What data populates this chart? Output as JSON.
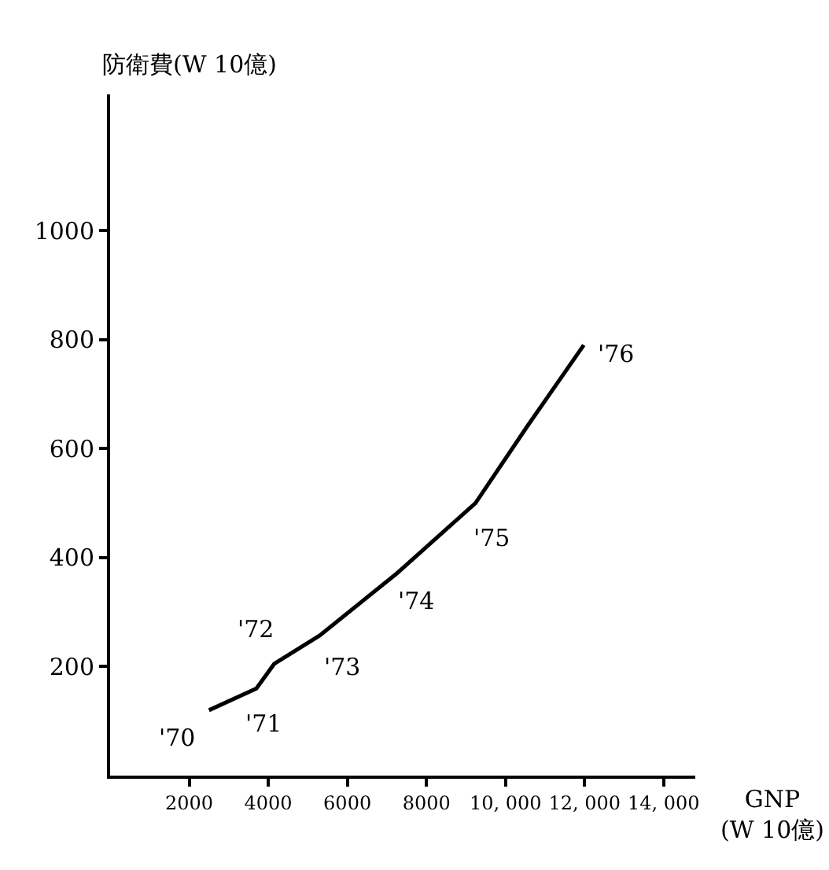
{
  "chart_data": {
    "type": "line",
    "xlabel": "GNP\n(W 10億)",
    "ylabel": "防衛費(W 10億)",
    "x": [
      2500,
      3700,
      4150,
      5300,
      7250,
      9240,
      10570,
      11980
    ],
    "series": [
      {
        "color": "#000000",
        "values": [
          120,
          160,
          205,
          257,
          371,
          500,
          643,
          790
        ]
      }
    ],
    "xlim": [
      0,
      14800
    ],
    "ylim": [
      0,
      1250
    ],
    "xticks": [
      {
        "value": 2000,
        "label": "2000"
      },
      {
        "value": 4000,
        "label": "4000"
      },
      {
        "value": 6000,
        "label": "6000"
      },
      {
        "value": 8000,
        "label": "8000"
      },
      {
        "value": 10000,
        "label": "10, 000"
      },
      {
        "value": 12000,
        "label": "12, 000"
      },
      {
        "value": 14000,
        "label": "14, 000"
      }
    ],
    "yticks": [
      200,
      400,
      600,
      800,
      1000
    ],
    "annotations": [
      {
        "text": "'70",
        "x": 2500,
        "y": 120
      },
      {
        "text": "'71",
        "x": 3700,
        "y": 160
      },
      {
        "text": "'72",
        "x": 4150,
        "y": 205
      },
      {
        "text": "'73",
        "x": 5300,
        "y": 257
      },
      {
        "text": "'74",
        "x": 7250,
        "y": 371
      },
      {
        "text": "'75",
        "x": 9240,
        "y": 500
      },
      {
        "text": "'76",
        "x": 11980,
        "y": 790
      }
    ],
    "marker": "none",
    "line_style": "solid"
  }
}
